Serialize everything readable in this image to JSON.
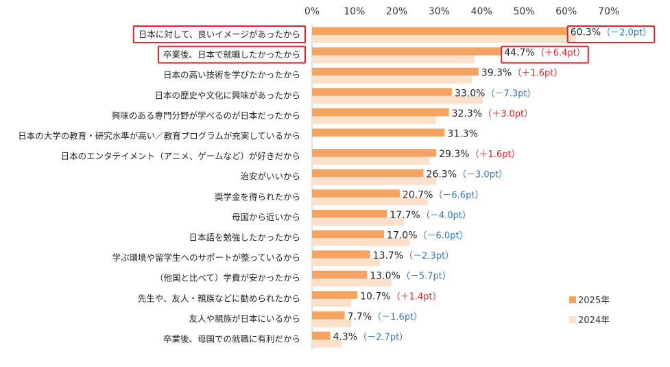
{
  "chart_data": {
    "type": "bar",
    "orientation": "horizontal",
    "categories": [
      "日本に対して、良いイメージがあったから",
      "卒業後、日本で就職したかったから",
      "日本の高い技術を学びたかったから",
      "日本の歴史や文化に興味があったから",
      "興味のある専門分野が学べるのが日本だったから",
      "日本の大学の教育・研究水準が高い／教育プログラムが充実しているから",
      "日本のエンタテイメント（アニメ、ゲームなど）が好きだから",
      "治安がいいから",
      "奨学金を得られたから",
      "母国から近いから",
      "日本語を勉強したかったから",
      "学ぶ環境や留学生へのサポートが整っているから",
      "（他国と比べて）学費が安かったから",
      "先生や、友人・親族などに勧められたから",
      "友人や親族が日本にいるから",
      "卒業後、母国での就職に有利だから"
    ],
    "series": [
      {
        "name": "2025年",
        "color": "#F4A460",
        "values": [
          60.3,
          44.7,
          39.3,
          33.0,
          32.3,
          31.3,
          29.3,
          26.3,
          20.7,
          17.7,
          17.0,
          13.7,
          13.0,
          10.7,
          7.7,
          4.3
        ]
      },
      {
        "name": "2024年",
        "color": "#FCE0CA",
        "values": [
          62.3,
          38.3,
          37.7,
          40.3,
          29.3,
          null,
          27.7,
          29.3,
          27.3,
          21.7,
          23.0,
          16.0,
          18.7,
          9.3,
          9.3,
          7.0
        ]
      }
    ],
    "value_labels": [
      "60.3%",
      "44.7%",
      "39.3%",
      "33.0%",
      "32.3%",
      "31.3%",
      "29.3%",
      "26.3%",
      "20.7%",
      "17.7%",
      "17.0%",
      "13.7%",
      "13.0%",
      "10.7%",
      "7.7%",
      "4.3%"
    ],
    "change_labels": [
      "（－2.0pt）",
      "（＋6.4pt）",
      "（＋1.6pt）",
      "（－7.3pt）",
      "（＋3.0pt）",
      "",
      "（＋1.6pt）",
      "（－3.0pt）",
      "（－6.6pt）",
      "（－4.0pt）",
      "（－6.0pt）",
      "（－2.3pt）",
      "（－5.7pt）",
      "（＋1.4pt）",
      "（－1.6pt）",
      "（－2.7pt）"
    ],
    "change_colors": {
      "up": "#E8202A",
      "down": "#2E75C8"
    },
    "highlighted": [
      0,
      1
    ],
    "highlight_color": "#E8202A",
    "x_ticks": [
      "0%",
      "10%",
      "20%",
      "30%",
      "40%",
      "50%",
      "60%",
      "70%"
    ],
    "xlim": [
      0,
      70
    ],
    "x_axis_position": "top",
    "grid": false,
    "legend_position": "bottom-right",
    "title": "",
    "xlabel": "",
    "ylabel": ""
  }
}
